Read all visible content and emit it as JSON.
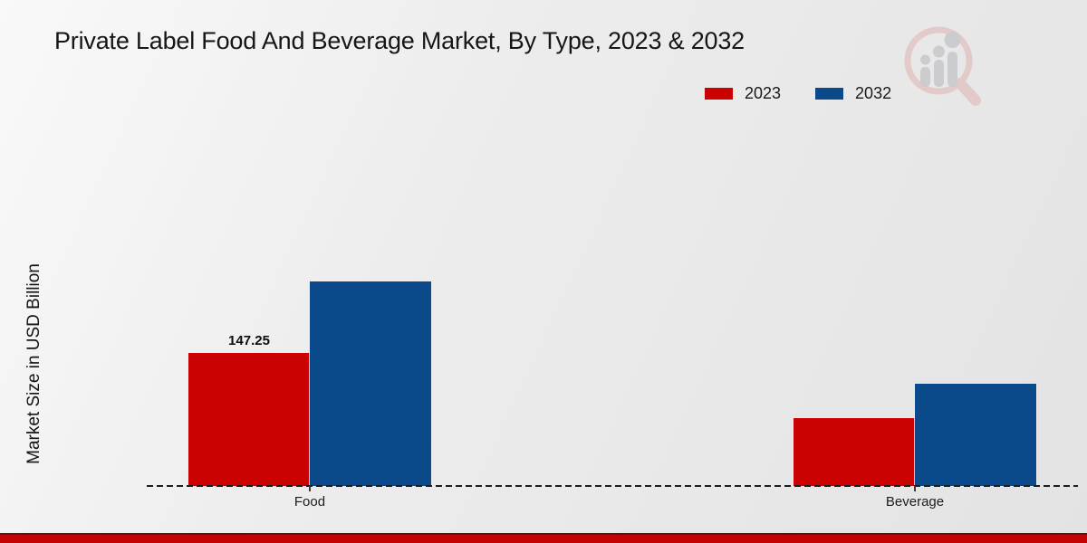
{
  "page": {
    "footer_bar_color": "#c40404",
    "footer_bar_edge_color": "#8e0000"
  },
  "logo": {
    "icon": "magnifier-bar-chart-logo",
    "ring_color": "#dfb3b1",
    "bars_color": "#c9cacd"
  },
  "chart_data": {
    "type": "bar",
    "title": "Private Label Food And Beverage Market, By Type, 2023 & 2032",
    "ylabel": "Market Size in USD Billion",
    "xlabel": "",
    "categories": [
      "Food",
      "Beverage"
    ],
    "series": [
      {
        "name": "2023",
        "color": "#cb0202",
        "values": [
          147.25,
          75
        ],
        "value_labels": [
          "147.25",
          ""
        ]
      },
      {
        "name": "2032",
        "color": "#0a4a8a",
        "values": [
          226,
          113
        ],
        "value_labels": [
          "",
          ""
        ]
      }
    ],
    "ylim": [
      0,
      250
    ],
    "grid": false,
    "legend_position": "top-right",
    "baseline_style": "dashed"
  }
}
